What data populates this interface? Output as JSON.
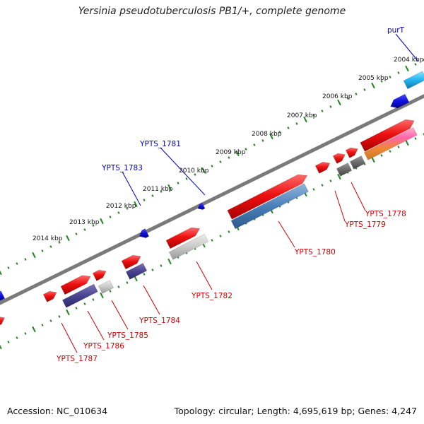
{
  "title": "Yersinia pseudotuberculosis PB1/+, complete genome",
  "footer": {
    "accession": "Accession: NC_010634",
    "summary": "Topology: circular; Length: 4,695,619 bp; Genes: 4,247"
  },
  "colors": {
    "forward_gene": "#ee1111",
    "reverse_gene": "#1111dd",
    "backbone": "#7a7a7a",
    "ruler_tick": "#228822",
    "forward_label": "#cc0000",
    "reverse_label": "#0000bb"
  },
  "ruler": [
    "2004 kbp",
    "2005 kbp",
    "2006 kbp",
    "2007 kbp",
    "2008 kbp",
    "2009 kbp",
    "2010 kbp",
    "2011 kbp",
    "2012 kbp",
    "2013 kbp",
    "2014 kbp"
  ],
  "forward_labels": [
    "YPTS_1778",
    "YPTS_1779",
    "YPTS_1780",
    "YPTS_1782",
    "YPTS_1784",
    "YPTS_1785",
    "YPTS_1786",
    "YPTS_1787"
  ],
  "reverse_labels": [
    "purT",
    "YPTS_1781",
    "YPTS_1783"
  ]
}
